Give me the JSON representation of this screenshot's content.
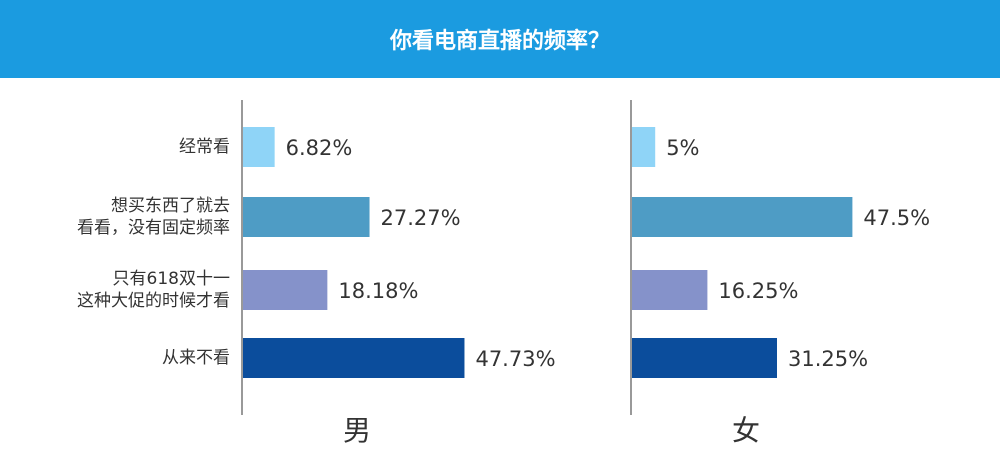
{
  "title": "你看电商直播的频率？",
  "chart_data": [
    {
      "type": "bar",
      "orientation": "horizontal",
      "title": "男",
      "categories": [
        [
          "经常看"
        ],
        [
          "想买东西了就去",
          "看看，没有固定频率"
        ],
        [
          "只有618双十一",
          "这种大促的时候才看"
        ],
        [
          "从来不看"
        ]
      ],
      "values": [
        6.82,
        27.27,
        18.18,
        47.73
      ],
      "value_labels": [
        "6.82%",
        "27.27%",
        "18.18%",
        "47.73%"
      ],
      "colors": [
        "#8fd4f7",
        "#4e9cc5",
        "#8592ca",
        "#0b4d9c"
      ]
    },
    {
      "type": "bar",
      "orientation": "horizontal",
      "title": "女",
      "values": [
        5,
        47.5,
        16.25,
        31.25
      ],
      "value_labels": [
        "5%",
        "47.5%",
        "16.25%",
        "31.25%"
      ],
      "colors": [
        "#8fd4f7",
        "#4e9cc5",
        "#8592ca",
        "#0b4d9c"
      ]
    }
  ]
}
